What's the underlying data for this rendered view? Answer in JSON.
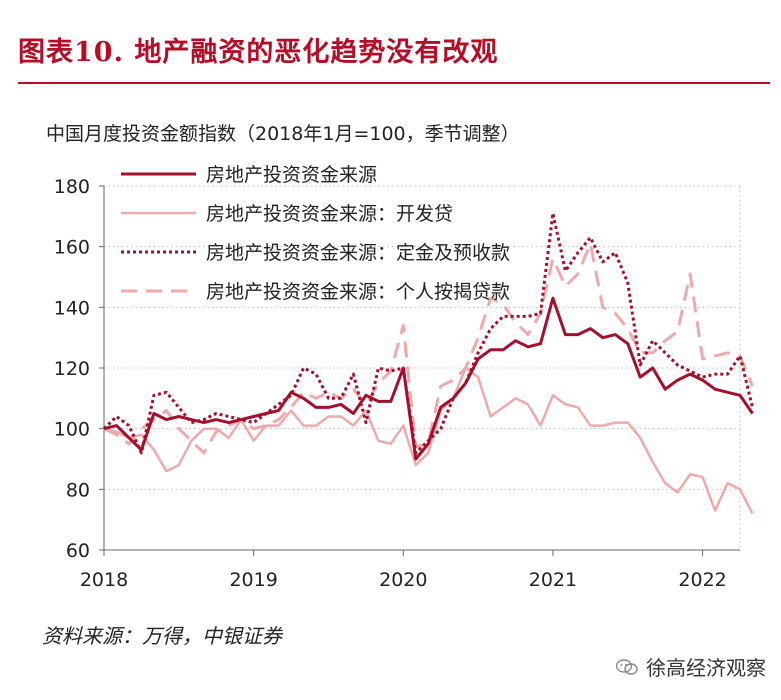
{
  "figure": {
    "title": "图表10.  地产融资的恶化趋势没有改观",
    "source": "资料来源：万得，中银证券",
    "watermark": "徐高经济观察"
  },
  "colors": {
    "title": "#b30d27",
    "dark_red": "#a50f2e",
    "light_pink": "#eeaaaa"
  },
  "chart_data": {
    "type": "line",
    "title": "中国月度投资金额指数（2018年1月=100，季节调整）",
    "ylim": [
      60,
      180
    ],
    "yticks": [
      60,
      80,
      100,
      120,
      140,
      160,
      180
    ],
    "xlim": [
      2018.0,
      2022.25
    ],
    "xticks": [
      {
        "value": 2018,
        "label": "2018"
      },
      {
        "value": 2019,
        "label": "2019"
      },
      {
        "value": 2020,
        "label": "2020"
      },
      {
        "value": 2021,
        "label": "2021"
      },
      {
        "value": 2022,
        "label": "2022"
      }
    ],
    "grid": "horizontal dotted",
    "legend_position": "top-left",
    "x_start": "2018-01",
    "x_step": "1 month",
    "series": [
      {
        "name": "房地产投资资金来源",
        "color": "#a50f2e",
        "style": "solid",
        "width": 3,
        "values": [
          100,
          101,
          97,
          93,
          105,
          103,
          104,
          103,
          102,
          103,
          102,
          103,
          104,
          105,
          106,
          112,
          110,
          107,
          107,
          108,
          105,
          111,
          109,
          109,
          120,
          90,
          95,
          107,
          110,
          115,
          123,
          126,
          126,
          129,
          127,
          128,
          143,
          131,
          131,
          133,
          130,
          131,
          128,
          117,
          120,
          113,
          116,
          118,
          116,
          113,
          112,
          111,
          105
        ]
      },
      {
        "name": "房地产投资资金来源：开发贷",
        "color": "#eeaaaa",
        "style": "solid",
        "width": 2.5,
        "values": [
          100,
          99,
          97,
          98,
          93,
          86,
          88,
          96,
          100,
          100,
          97,
          103,
          96,
          101,
          101,
          106,
          101,
          101,
          104,
          104,
          101,
          106,
          96,
          95,
          101,
          88,
          92,
          106,
          110,
          120,
          117,
          104,
          107,
          110,
          108,
          101,
          111,
          108,
          107,
          101,
          101,
          102,
          102,
          97,
          89,
          82,
          79,
          85,
          84,
          73,
          82,
          80,
          72
        ]
      },
      {
        "name": "房地产投资资金来源：定金及预收款",
        "color": "#a50f2e",
        "style": "dotted",
        "width": 3,
        "values": [
          100,
          104,
          101,
          92,
          111,
          112,
          107,
          102,
          103,
          105,
          104,
          103,
          102,
          105,
          108,
          111,
          120,
          118,
          110,
          110,
          118,
          102,
          120,
          119,
          120,
          92,
          96,
          100,
          110,
          115,
          125,
          133,
          137,
          137,
          137,
          138,
          171,
          152,
          158,
          163,
          155,
          158,
          148,
          121,
          129,
          125,
          121,
          119,
          117,
          118,
          118,
          124,
          107
        ]
      },
      {
        "name": "房地产投资资金来源：个人按揭贷款",
        "color": "#eeaaaa",
        "style": "dashed",
        "width": 3,
        "values": [
          100,
          98,
          95,
          100,
          103,
          106,
          100,
          96,
          92,
          99,
          101,
          103,
          100,
          101,
          103,
          107,
          112,
          110,
          112,
          110,
          113,
          108,
          115,
          119,
          134,
          94,
          95,
          114,
          116,
          120,
          130,
          143,
          141,
          135,
          131,
          138,
          156,
          147,
          151,
          161,
          140,
          138,
          133,
          125,
          125,
          129,
          132,
          151,
          123,
          124,
          125,
          124,
          114
        ]
      }
    ]
  }
}
